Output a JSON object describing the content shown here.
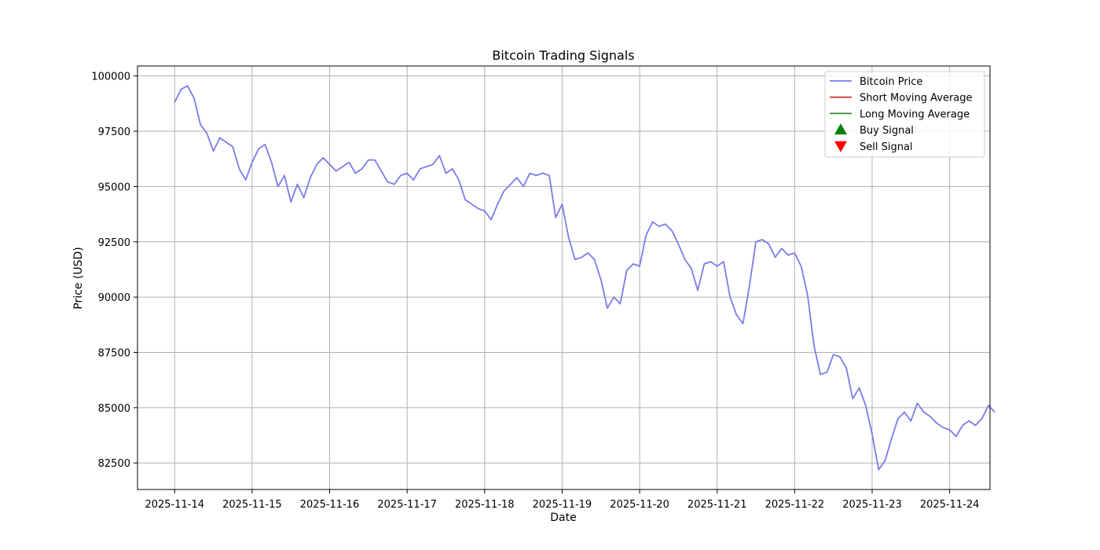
{
  "chart_data": {
    "type": "line",
    "title": "Bitcoin Trading Signals",
    "xlabel": "Date",
    "ylabel": "Price (USD)",
    "x_ticks": [
      "2025-11-14",
      "2025-11-15",
      "2025-11-16",
      "2025-11-17",
      "2025-11-18",
      "2025-11-19",
      "2025-11-20",
      "2025-11-21",
      "2025-11-22",
      "2025-11-23",
      "2025-11-24"
    ],
    "y_ticks": [
      82500,
      85000,
      87500,
      90000,
      92500,
      95000,
      97500,
      100000
    ],
    "xlim": [
      "2025-11-13T12:30",
      "2025-11-24T12:30"
    ],
    "ylim": [
      81300,
      100450
    ],
    "grid": true,
    "legend_position": "top-right",
    "legend": [
      "Bitcoin Price",
      "Short Moving Average",
      "Long Moving Average",
      "Buy Signal",
      "Sell Signal"
    ],
    "colors": {
      "price": "#7b7bea",
      "short_ma": "#e03b3b",
      "long_ma": "#2f8f2f",
      "buy": "#008000",
      "sell": "#ff0000",
      "grid": "#b0b0b0"
    },
    "series": [
      {
        "name": "Bitcoin Price",
        "points": [
          [
            "2025-11-14T00:00",
            98800
          ],
          [
            "2025-11-14T02:00",
            99400
          ],
          [
            "2025-11-14T04:00",
            99550
          ],
          [
            "2025-11-14T06:00",
            99000
          ],
          [
            "2025-11-14T08:00",
            97800
          ],
          [
            "2025-11-14T10:00",
            97400
          ],
          [
            "2025-11-14T12:00",
            96600
          ],
          [
            "2025-11-14T14:00",
            97200
          ],
          [
            "2025-11-14T16:00",
            97000
          ],
          [
            "2025-11-14T18:00",
            96800
          ],
          [
            "2025-11-14T20:00",
            95800
          ],
          [
            "2025-11-14T22:00",
            95300
          ],
          [
            "2025-11-15T00:00",
            96100
          ],
          [
            "2025-11-15T02:00",
            96700
          ],
          [
            "2025-11-15T04:00",
            96900
          ],
          [
            "2025-11-15T06:00",
            96100
          ],
          [
            "2025-11-15T08:00",
            95000
          ],
          [
            "2025-11-15T10:00",
            95500
          ],
          [
            "2025-11-15T12:00",
            94300
          ],
          [
            "2025-11-15T14:00",
            95100
          ],
          [
            "2025-11-15T16:00",
            94500
          ],
          [
            "2025-11-15T18:00",
            95400
          ],
          [
            "2025-11-15T20:00",
            96000
          ],
          [
            "2025-11-15T22:00",
            96300
          ],
          [
            "2025-11-16T00:00",
            96000
          ],
          [
            "2025-11-16T02:00",
            95700
          ],
          [
            "2025-11-16T04:00",
            95900
          ],
          [
            "2025-11-16T06:00",
            96100
          ],
          [
            "2025-11-16T08:00",
            95600
          ],
          [
            "2025-11-16T10:00",
            95800
          ],
          [
            "2025-11-16T12:00",
            96200
          ],
          [
            "2025-11-16T14:00",
            96200
          ],
          [
            "2025-11-16T16:00",
            95700
          ],
          [
            "2025-11-16T18:00",
            95200
          ],
          [
            "2025-11-16T20:00",
            95100
          ],
          [
            "2025-11-16T22:00",
            95500
          ],
          [
            "2025-11-17T00:00",
            95600
          ],
          [
            "2025-11-17T02:00",
            95300
          ],
          [
            "2025-11-17T04:00",
            95800
          ],
          [
            "2025-11-17T06:00",
            95900
          ],
          [
            "2025-11-17T08:00",
            96000
          ],
          [
            "2025-11-17T10:00",
            96400
          ],
          [
            "2025-11-17T12:00",
            95600
          ],
          [
            "2025-11-17T14:00",
            95800
          ],
          [
            "2025-11-17T16:00",
            95300
          ],
          [
            "2025-11-17T18:00",
            94400
          ],
          [
            "2025-11-17T20:00",
            94200
          ],
          [
            "2025-11-17T22:00",
            94000
          ],
          [
            "2025-11-18T00:00",
            93900
          ],
          [
            "2025-11-18T02:00",
            93500
          ],
          [
            "2025-11-18T04:00",
            94200
          ],
          [
            "2025-11-18T06:00",
            94800
          ],
          [
            "2025-11-18T08:00",
            95100
          ],
          [
            "2025-11-18T10:00",
            95400
          ],
          [
            "2025-11-18T12:00",
            95000
          ],
          [
            "2025-11-18T14:00",
            95600
          ],
          [
            "2025-11-18T16:00",
            95500
          ],
          [
            "2025-11-18T18:00",
            95600
          ],
          [
            "2025-11-18T20:00",
            95500
          ],
          [
            "2025-11-18T22:00",
            93600
          ],
          [
            "2025-11-19T00:00",
            94200
          ],
          [
            "2025-11-19T02:00",
            92700
          ],
          [
            "2025-11-19T04:00",
            91700
          ],
          [
            "2025-11-19T06:00",
            91800
          ],
          [
            "2025-11-19T08:00",
            92000
          ],
          [
            "2025-11-19T10:00",
            91700
          ],
          [
            "2025-11-19T12:00",
            90800
          ],
          [
            "2025-11-19T14:00",
            89500
          ],
          [
            "2025-11-19T16:00",
            90000
          ],
          [
            "2025-11-19T18:00",
            89700
          ],
          [
            "2025-11-19T20:00",
            91200
          ],
          [
            "2025-11-19T22:00",
            91500
          ],
          [
            "2025-11-20T00:00",
            91400
          ],
          [
            "2025-11-20T02:00",
            92800
          ],
          [
            "2025-11-20T04:00",
            93400
          ],
          [
            "2025-11-20T06:00",
            93200
          ],
          [
            "2025-11-20T08:00",
            93300
          ],
          [
            "2025-11-20T10:00",
            93000
          ],
          [
            "2025-11-20T12:00",
            92400
          ],
          [
            "2025-11-20T14:00",
            91700
          ],
          [
            "2025-11-20T16:00",
            91300
          ],
          [
            "2025-11-20T18:00",
            90300
          ],
          [
            "2025-11-20T20:00",
            91500
          ],
          [
            "2025-11-20T22:00",
            91600
          ],
          [
            "2025-11-21T00:00",
            91400
          ],
          [
            "2025-11-21T02:00",
            91600
          ],
          [
            "2025-11-21T04:00",
            90000
          ],
          [
            "2025-11-21T06:00",
            89200
          ],
          [
            "2025-11-21T08:00",
            88800
          ],
          [
            "2025-11-21T10:00",
            90500
          ],
          [
            "2025-11-21T12:00",
            92500
          ],
          [
            "2025-11-21T14:00",
            92600
          ],
          [
            "2025-11-21T16:00",
            92400
          ],
          [
            "2025-11-21T18:00",
            91800
          ],
          [
            "2025-11-21T20:00",
            92200
          ],
          [
            "2025-11-21T22:00",
            91900
          ],
          [
            "2025-11-22T00:00",
            92000
          ],
          [
            "2025-11-22T02:00",
            91400
          ],
          [
            "2025-11-22T04:00",
            90100
          ],
          [
            "2025-11-22T06:00",
            87800
          ],
          [
            "2025-11-22T08:00",
            86500
          ],
          [
            "2025-11-22T10:00",
            86600
          ],
          [
            "2025-11-22T12:00",
            87400
          ],
          [
            "2025-11-22T14:00",
            87300
          ],
          [
            "2025-11-22T16:00",
            86800
          ],
          [
            "2025-11-22T18:00",
            85400
          ],
          [
            "2025-11-22T20:00",
            85900
          ],
          [
            "2025-11-22T22:00",
            85100
          ],
          [
            "2025-11-23T00:00",
            83800
          ],
          [
            "2025-11-23T02:00",
            82200
          ],
          [
            "2025-11-23T04:00",
            82600
          ],
          [
            "2025-11-23T06:00",
            83600
          ],
          [
            "2025-11-23T08:00",
            84500
          ],
          [
            "2025-11-23T10:00",
            84800
          ],
          [
            "2025-11-23T12:00",
            84400
          ],
          [
            "2025-11-23T14:00",
            85200
          ],
          [
            "2025-11-23T16:00",
            84800
          ],
          [
            "2025-11-23T18:00",
            84600
          ],
          [
            "2025-11-23T20:00",
            84300
          ],
          [
            "2025-11-23T22:00",
            84100
          ],
          [
            "2025-11-24T00:00",
            84000
          ],
          [
            "2025-11-24T02:00",
            83700
          ],
          [
            "2025-11-24T04:00",
            84200
          ],
          [
            "2025-11-24T06:00",
            84400
          ],
          [
            "2025-11-24T08:00",
            84200
          ],
          [
            "2025-11-24T10:00",
            84500
          ],
          [
            "2025-11-24T12:00",
            85100
          ],
          [
            "2025-11-24T14:00",
            84800
          ]
        ]
      },
      {
        "name": "Short Moving Average",
        "points": []
      },
      {
        "name": "Long Moving Average",
        "points": []
      }
    ]
  }
}
